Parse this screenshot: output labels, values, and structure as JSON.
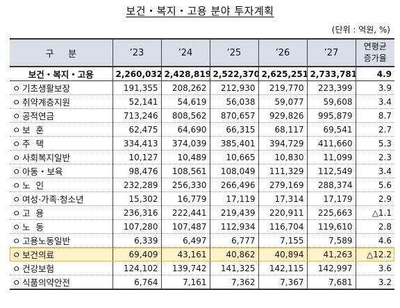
{
  "title": "보건・복지・고용 분야 투자계획",
  "unit": "(단위 : 억원, %)",
  "header": {
    "category": "구     분",
    "years": [
      "’23",
      "’24",
      "’25",
      "’26",
      "’27"
    ],
    "growth_line1": "연평균",
    "growth_line2": "증가율"
  },
  "bullet": "ㅇ",
  "total": {
    "label": "보건・복지・고용",
    "values": [
      "2,260,032",
      "2,428,819",
      "2,522,370",
      "2,625,251",
      "2,733,781"
    ],
    "growth": "4.9"
  },
  "rows": [
    {
      "label": "기초생활보장",
      "values": [
        "191,355",
        "208,262",
        "212,930",
        "219,770",
        "223,399"
      ],
      "growth": "3.9"
    },
    {
      "label": "취약계층지원",
      "values": [
        "52,141",
        "54,619",
        "56,038",
        "59,077",
        "59,608"
      ],
      "growth": "3.4"
    },
    {
      "label": "공적연금",
      "values": [
        "713,246",
        "808,562",
        "870,657",
        "929,826",
        "995,879"
      ],
      "growth": "8.7"
    },
    {
      "label": "보  훈",
      "values": [
        "62,475",
        "64,690",
        "66,315",
        "68,117",
        "69,541"
      ],
      "growth": "2.7"
    },
    {
      "label": "주  택",
      "values": [
        "334,413",
        "374,039",
        "385,401",
        "394,729",
        "411,660"
      ],
      "growth": "5.3"
    },
    {
      "label": "사회복지일반",
      "values": [
        "10,127",
        "10,489",
        "10,665",
        "10,830",
        "11,099"
      ],
      "growth": "2.3"
    },
    {
      "label": "아동・보육",
      "values": [
        "98,476",
        "108,561",
        "108,049",
        "111,329",
        "112,549"
      ],
      "growth": "3.4"
    },
    {
      "label": "노  인",
      "values": [
        "232,289",
        "256,330",
        "266,496",
        "279,169",
        "288,374"
      ],
      "growth": "5.6"
    },
    {
      "label": "여성·가족·청소년",
      "values": [
        "15,302",
        "16,779",
        "17,119",
        "17,314",
        "17,179"
      ],
      "growth": "2.9"
    },
    {
      "label": "고  용",
      "values": [
        "236,316",
        "222,441",
        "219,439",
        "220,911",
        "225,663"
      ],
      "growth": "△1.1"
    },
    {
      "label": "노  동",
      "values": [
        "107,280",
        "107,487",
        "112,934",
        "116,704",
        "119,610"
      ],
      "growth": "2.8"
    },
    {
      "label": "고용노동일반",
      "values": [
        "6,339",
        "6,497",
        "6,777",
        "7,155",
        "7,589"
      ],
      "growth": "4.6"
    },
    {
      "label": "보건의료",
      "values": [
        "69,409",
        "43,161",
        "40,862",
        "40,894",
        "41,263"
      ],
      "growth": "△12.2",
      "highlight": true
    },
    {
      "label": "건강보험",
      "values": [
        "124,102",
        "139,742",
        "141,325",
        "142,115",
        "142,997"
      ],
      "growth": "3.6"
    },
    {
      "label": "식품의약안전",
      "values": [
        "6,764",
        "7,161",
        "7,362",
        "7,367",
        "7,681"
      ],
      "growth": "3.2"
    }
  ]
}
